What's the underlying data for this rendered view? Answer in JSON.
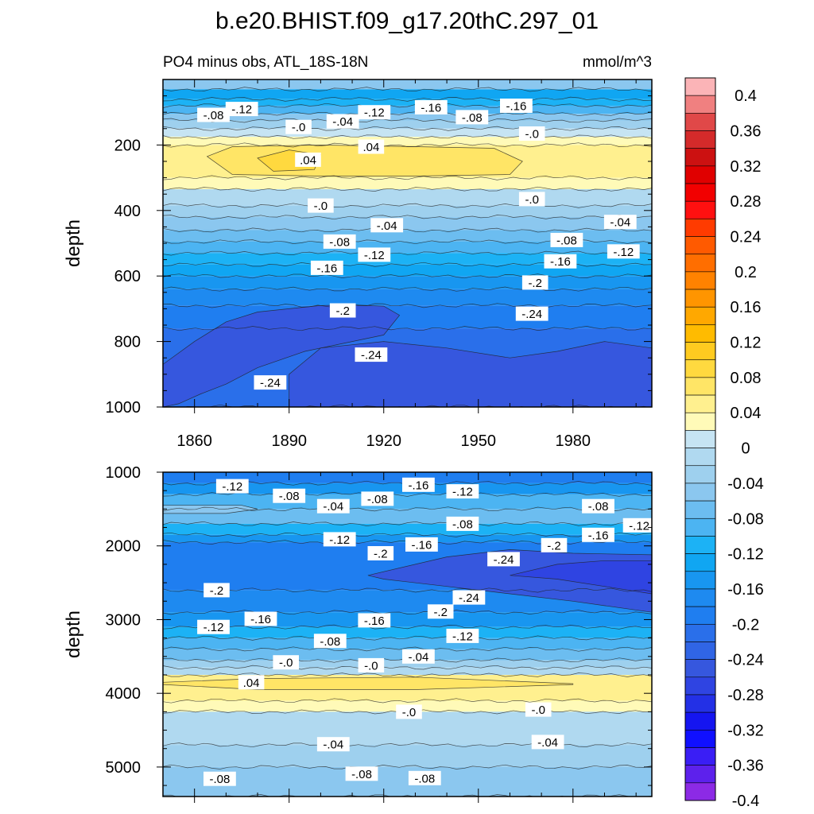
{
  "chart_data": {
    "type": "contour",
    "title": "b.e20.BHIST.f09_g17.20thC.297_01",
    "subtitle_left": "PO4 minus obs, ATL_18S-18N",
    "units": "mmol/m^3",
    "xlim": [
      1850,
      2005
    ],
    "xticks": [
      1860,
      1890,
      1920,
      1950,
      1980
    ],
    "panels": [
      {
        "name": "upper",
        "ylabel": "depth",
        "ylim": [
          0,
          1000
        ],
        "yticks": [
          200,
          400,
          600,
          800,
          1000
        ],
        "xtick_labels_shown": true,
        "bands": [
          {
            "top": 0,
            "bottom": 30,
            "value": -0.06
          },
          {
            "top": 30,
            "bottom": 60,
            "value": -0.14
          },
          {
            "top": 60,
            "bottom": 80,
            "value": -0.12
          },
          {
            "top": 80,
            "bottom": 105,
            "value": -0.1
          },
          {
            "top": 105,
            "bottom": 125,
            "value": -0.07
          },
          {
            "top": 125,
            "bottom": 150,
            "value": -0.04
          },
          {
            "top": 150,
            "bottom": 175,
            "value": -0.01
          },
          {
            "top": 175,
            "bottom": 200,
            "value": 0.01
          },
          {
            "top": 200,
            "bottom": 300,
            "value": 0.03
          },
          {
            "top": 300,
            "bottom": 335,
            "value": 0.01
          },
          {
            "top": 335,
            "bottom": 385,
            "value": -0.02
          },
          {
            "top": 385,
            "bottom": 420,
            "value": -0.04
          },
          {
            "top": 420,
            "bottom": 460,
            "value": -0.06
          },
          {
            "top": 460,
            "bottom": 495,
            "value": -0.08
          },
          {
            "top": 495,
            "bottom": 530,
            "value": -0.1
          },
          {
            "top": 530,
            "bottom": 565,
            "value": -0.12
          },
          {
            "top": 565,
            "bottom": 600,
            "value": -0.14
          },
          {
            "top": 600,
            "bottom": 640,
            "value": -0.16
          },
          {
            "top": 640,
            "bottom": 690,
            "value": -0.18
          },
          {
            "top": 690,
            "bottom": 760,
            "value": -0.2
          },
          {
            "top": 760,
            "bottom": 1000,
            "value": -0.22
          }
        ],
        "patches": [
          {
            "x": [
              1850,
              1860,
              1870,
              1880,
              1890,
              1900,
              1910,
              1920,
              1925,
              1920,
              1910,
              1895,
              1880,
              1870,
              1862,
              1855,
              1850
            ],
            "y": [
              870,
              800,
              740,
              710,
              700,
              690,
              688,
              692,
              720,
              780,
              800,
              830,
              880,
              930,
              960,
              990,
              1000
            ],
            "value": -0.26
          },
          {
            "x": [
              1890,
              1900,
              1920,
              1940,
              1960,
              1975,
              1990,
              2005,
              2005,
              1890
            ],
            "y": [
              900,
              820,
              800,
              820,
              850,
              830,
              800,
              820,
              1000,
              1000
            ],
            "value": -0.26
          },
          {
            "x": [
              1864,
              1872,
              1900,
              1930,
              1955,
              1964,
              1960,
              1930,
              1900,
              1872
            ],
            "y": [
              235,
              205,
              200,
              205,
              210,
              250,
              290,
              295,
              295,
              290
            ],
            "value": 0.05
          },
          {
            "x": [
              1880,
              1890,
              1900,
              1898,
              1885
            ],
            "y": [
              240,
              215,
              230,
              275,
              280
            ],
            "value": 0.07
          }
        ],
        "contour_labels": [
          {
            "x": 1866,
            "y": 108,
            "text": "-.08"
          },
          {
            "x": 1875,
            "y": 90,
            "text": "-.12"
          },
          {
            "x": 1893,
            "y": 145,
            "text": "-.0"
          },
          {
            "x": 1907,
            "y": 128,
            "text": "-.04"
          },
          {
            "x": 1917,
            "y": 100,
            "text": "-.12"
          },
          {
            "x": 1935,
            "y": 85,
            "text": "-.16"
          },
          {
            "x": 1948,
            "y": 115,
            "text": "-.08"
          },
          {
            "x": 1962,
            "y": 80,
            "text": "-.16"
          },
          {
            "x": 1967,
            "y": 165,
            "text": "-.0"
          },
          {
            "x": 1916,
            "y": 205,
            "text": ".04"
          },
          {
            "x": 1896,
            "y": 245,
            "text": ".04"
          },
          {
            "x": 1900,
            "y": 385,
            "text": "-.0"
          },
          {
            "x": 1967,
            "y": 365,
            "text": "-.0"
          },
          {
            "x": 1921,
            "y": 445,
            "text": "-.04"
          },
          {
            "x": 1995,
            "y": 435,
            "text": "-.04"
          },
          {
            "x": 1906,
            "y": 495,
            "text": "-.08"
          },
          {
            "x": 1978,
            "y": 490,
            "text": "-.08"
          },
          {
            "x": 1917,
            "y": 535,
            "text": "-.12"
          },
          {
            "x": 1996,
            "y": 525,
            "text": "-.12"
          },
          {
            "x": 1902,
            "y": 575,
            "text": "-.16"
          },
          {
            "x": 1976,
            "y": 555,
            "text": "-.16"
          },
          {
            "x": 1968,
            "y": 620,
            "text": "-.2"
          },
          {
            "x": 1907,
            "y": 705,
            "text": "-.2"
          },
          {
            "x": 1967,
            "y": 715,
            "text": "-.24"
          },
          {
            "x": 1916,
            "y": 840,
            "text": "-.24"
          },
          {
            "x": 1884,
            "y": 925,
            "text": "-.24"
          }
        ]
      },
      {
        "name": "lower",
        "ylabel": "depth",
        "ylim": [
          1000,
          5400
        ],
        "yticks": [
          1000,
          2000,
          3000,
          4000,
          5000
        ],
        "xtick_labels_shown": false,
        "bands": [
          {
            "top": 1000,
            "bottom": 1150,
            "value": -0.2
          },
          {
            "top": 1150,
            "bottom": 1300,
            "value": -0.16
          },
          {
            "top": 1300,
            "bottom": 1500,
            "value": -0.1
          },
          {
            "top": 1500,
            "bottom": 1700,
            "value": -0.08
          },
          {
            "top": 1700,
            "bottom": 1850,
            "value": -0.12
          },
          {
            "top": 1850,
            "bottom": 1950,
            "value": -0.16
          },
          {
            "top": 1950,
            "bottom": 2600,
            "value": -0.2
          },
          {
            "top": 2600,
            "bottom": 2900,
            "value": -0.18
          },
          {
            "top": 2900,
            "bottom": 3100,
            "value": -0.16
          },
          {
            "top": 3100,
            "bottom": 3250,
            "value": -0.12
          },
          {
            "top": 3250,
            "bottom": 3400,
            "value": -0.1
          },
          {
            "top": 3400,
            "bottom": 3550,
            "value": -0.08
          },
          {
            "top": 3550,
            "bottom": 3650,
            "value": -0.04
          },
          {
            "top": 3650,
            "bottom": 3750,
            "value": -0.02
          },
          {
            "top": 3750,
            "bottom": 4100,
            "value": 0.03
          },
          {
            "top": 4100,
            "bottom": 4250,
            "value": 0.01
          },
          {
            "top": 4250,
            "bottom": 4700,
            "value": -0.02
          },
          {
            "top": 4700,
            "bottom": 5000,
            "value": -0.04
          },
          {
            "top": 5000,
            "bottom": 5400,
            "value": -0.06
          }
        ],
        "patches": [
          {
            "x": [
              1850,
              1875,
              1880,
              1870,
              1850
            ],
            "y": [
              1450,
              1450,
              1500,
              1560,
              1560
            ],
            "value": -0.06
          },
          {
            "x": [
              1915,
              1940,
              1960,
              1980,
              2005,
              2005,
              1980,
              1960,
              1940,
              1920
            ],
            "y": [
              2400,
              2150,
              2050,
              2100,
              2120,
              2900,
              2750,
              2650,
              2550,
              2450
            ],
            "value": -0.26
          },
          {
            "x": [
              1960,
              1975,
              1990,
              2005,
              2005,
              1990,
              1975
            ],
            "y": [
              2400,
              2250,
              2200,
              2200,
              2650,
              2550,
              2450
            ],
            "value": -0.28
          },
          {
            "x": [
              1850,
              1880,
              1930,
              1980,
              1980,
              1930,
              1880,
              1850
            ],
            "y": [
              3850,
              3800,
              3780,
              3870,
              3880,
              3950,
              3950,
              3880
            ],
            "value": 0.05
          }
        ],
        "contour_labels": [
          {
            "x": 1872,
            "y": 1190,
            "text": "-.12"
          },
          {
            "x": 1890,
            "y": 1320,
            "text": "-.08"
          },
          {
            "x": 1904,
            "y": 1460,
            "text": "-.04"
          },
          {
            "x": 1918,
            "y": 1360,
            "text": "-.08"
          },
          {
            "x": 1931,
            "y": 1170,
            "text": "-.16"
          },
          {
            "x": 1945,
            "y": 1260,
            "text": "-.12"
          },
          {
            "x": 1988,
            "y": 1460,
            "text": "-.08"
          },
          {
            "x": 1945,
            "y": 1700,
            "text": "-.08"
          },
          {
            "x": 2001,
            "y": 1720,
            "text": "-.12"
          },
          {
            "x": 1988,
            "y": 1850,
            "text": "-.16"
          },
          {
            "x": 1906,
            "y": 1910,
            "text": "-.12"
          },
          {
            "x": 1932,
            "y": 1980,
            "text": "-.16"
          },
          {
            "x": 1974,
            "y": 1990,
            "text": "-.2"
          },
          {
            "x": 1919,
            "y": 2100,
            "text": "-.2"
          },
          {
            "x": 1958,
            "y": 2180,
            "text": "-.24"
          },
          {
            "x": 1867,
            "y": 2600,
            "text": "-.2"
          },
          {
            "x": 1947,
            "y": 2700,
            "text": "-.24"
          },
          {
            "x": 1938,
            "y": 2890,
            "text": "-.2"
          },
          {
            "x": 1881,
            "y": 2990,
            "text": "-.16"
          },
          {
            "x": 1917,
            "y": 3010,
            "text": "-.16"
          },
          {
            "x": 1866,
            "y": 3100,
            "text": "-.12"
          },
          {
            "x": 1945,
            "y": 3220,
            "text": "-.12"
          },
          {
            "x": 1903,
            "y": 3290,
            "text": "-.08"
          },
          {
            "x": 1931,
            "y": 3500,
            "text": "-.04"
          },
          {
            "x": 1889,
            "y": 3580,
            "text": "-.0"
          },
          {
            "x": 1916,
            "y": 3620,
            "text": "-.0"
          },
          {
            "x": 1878,
            "y": 3850,
            "text": ".04"
          },
          {
            "x": 1928,
            "y": 4250,
            "text": "-.0"
          },
          {
            "x": 1969,
            "y": 4220,
            "text": "-.0"
          },
          {
            "x": 1904,
            "y": 4690,
            "text": "-.04"
          },
          {
            "x": 1972,
            "y": 4660,
            "text": "-.04"
          },
          {
            "x": 1868,
            "y": 5160,
            "text": "-.08"
          },
          {
            "x": 1913,
            "y": 5090,
            "text": "-.08"
          },
          {
            "x": 1933,
            "y": 5150,
            "text": "-.08"
          }
        ]
      }
    ],
    "colorbar": {
      "label_values": [
        "0.4",
        "0.36",
        "0.32",
        "0.28",
        "0.24",
        "0.2",
        "0.16",
        "0.12",
        "0.08",
        "0.04",
        "0",
        "-0.04",
        "-0.08",
        "-0.12",
        "-0.16",
        "-0.2",
        "-0.24",
        "-0.28",
        "-0.32",
        "-0.36",
        "-0.4"
      ],
      "boundaries": [
        0.4,
        0.38,
        0.36,
        0.34,
        0.32,
        0.3,
        0.28,
        0.26,
        0.24,
        0.22,
        0.2,
        0.18,
        0.16,
        0.14,
        0.12,
        0.1,
        0.08,
        0.06,
        0.04,
        0.02,
        0.0,
        -0.02,
        -0.04,
        -0.06,
        -0.08,
        -0.1,
        -0.12,
        -0.14,
        -0.16,
        -0.18,
        -0.2,
        -0.22,
        -0.24,
        -0.26,
        -0.28,
        -0.3,
        -0.32,
        -0.34,
        -0.36,
        -0.38,
        -0.4
      ],
      "colors": [
        "#fbb4b7",
        "#f08080",
        "#e04848",
        "#d42a2a",
        "#cc1111",
        "#e00000",
        "#f20000",
        "#ff1010",
        "#ff3b00",
        "#ff5a00",
        "#ff6e00",
        "#ff8200",
        "#ff9500",
        "#ffa800",
        "#ffbb00",
        "#ffcb20",
        "#ffd93f",
        "#ffe566",
        "#fff08f",
        "#fffab8",
        "#c6e4f3",
        "#b0d9f0",
        "#9ed0ee",
        "#8bc7ef",
        "#6cbdf0",
        "#4cb4f2",
        "#1cb2f5",
        "#10a6f2",
        "#1896f0",
        "#1e8af0",
        "#1f7ef0",
        "#2a6fea",
        "#3065e5",
        "#3657de",
        "#2f44e2",
        "#2330e6",
        "#1515f0",
        "#1010ff",
        "#3a1ef5",
        "#5d21ec",
        "#8c2ae5"
      ]
    }
  }
}
